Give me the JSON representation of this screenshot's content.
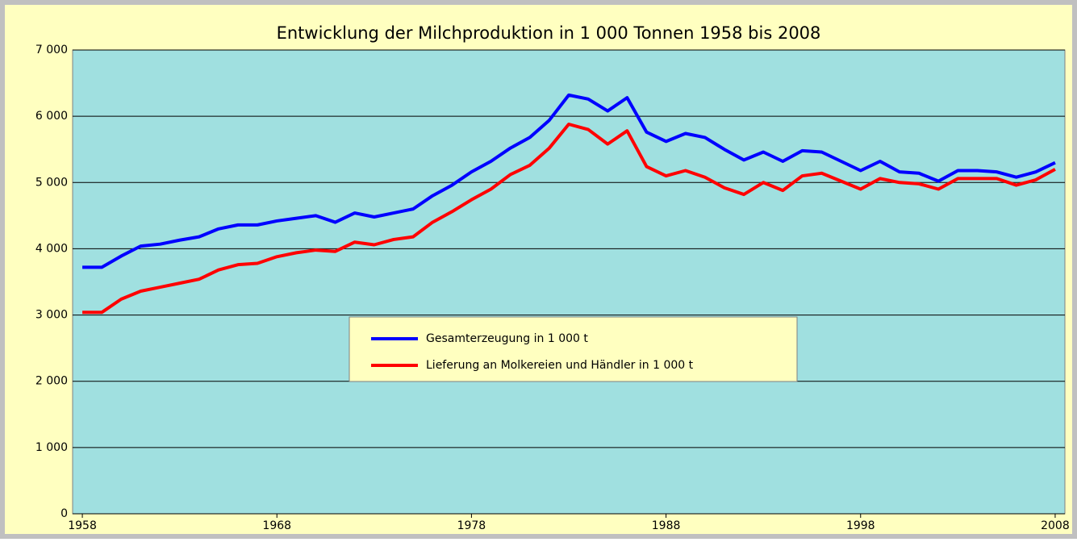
{
  "chart_data": {
    "type": "line",
    "title": "Entwicklung der Milchproduktion in 1 000 Tonnen 1958 bis 2008",
    "x": [
      1958,
      1959,
      1960,
      1961,
      1962,
      1963,
      1964,
      1965,
      1966,
      1967,
      1968,
      1969,
      1970,
      1971,
      1972,
      1973,
      1974,
      1975,
      1976,
      1977,
      1978,
      1979,
      1980,
      1981,
      1982,
      1983,
      1984,
      1985,
      1986,
      1987,
      1988,
      1989,
      1990,
      1991,
      1992,
      1993,
      1994,
      1995,
      1996,
      1997,
      1998,
      1999,
      2000,
      2001,
      2002,
      2003,
      2004,
      2005,
      2006,
      2007,
      2008
    ],
    "series": [
      {
        "name": "Gesamterzeugung in 1 000 t",
        "color": "#0000ff",
        "values": [
          3720,
          3720,
          3890,
          4040,
          4070,
          4130,
          4180,
          4300,
          4360,
          4360,
          4420,
          4460,
          4500,
          4400,
          4540,
          4480,
          4540,
          4600,
          4800,
          4960,
          5160,
          5320,
          5520,
          5680,
          5940,
          6320,
          6260,
          6080,
          6280,
          5760,
          5620,
          5740,
          5680,
          5500,
          5340,
          5460,
          5320,
          5480,
          5460,
          5320,
          5180,
          5320,
          5160,
          5140,
          5020,
          5180,
          5180,
          5160,
          5080,
          5160,
          5300
        ]
      },
      {
        "name": "Lieferung an Molkereien und Händler in 1 000 t",
        "color": "#ff0000",
        "values": [
          3040,
          3040,
          3240,
          3360,
          3420,
          3480,
          3540,
          3680,
          3760,
          3780,
          3880,
          3940,
          3980,
          3960,
          4100,
          4060,
          4140,
          4180,
          4400,
          4560,
          4740,
          4900,
          5120,
          5260,
          5520,
          5880,
          5800,
          5580,
          5780,
          5240,
          5100,
          5180,
          5080,
          4920,
          4820,
          5000,
          4880,
          5100,
          5140,
          5020,
          4900,
          5060,
          5000,
          4980,
          4900,
          5060,
          5060,
          5060,
          4960,
          5040,
          5200
        ]
      }
    ],
    "xlim": [
      1957.5,
      2008.5
    ],
    "xticks": [
      1958,
      1968,
      1978,
      1988,
      1998,
      2008
    ],
    "ylim": [
      0,
      7000
    ],
    "yticks": [
      0,
      {
        "value": 1000,
        "label": "1 000"
      },
      {
        "value": 2000,
        "label": "2 000"
      },
      {
        "value": 3000,
        "label": "3 000"
      },
      {
        "value": 4000,
        "label": "4 000"
      },
      {
        "value": 5000,
        "label": "5 000"
      },
      {
        "value": 6000,
        "label": "6 000"
      },
      {
        "value": 7000,
        "label": "7 000"
      }
    ],
    "grid": true,
    "plot_background": "#a0e0e0",
    "background": "#ffffc0"
  }
}
